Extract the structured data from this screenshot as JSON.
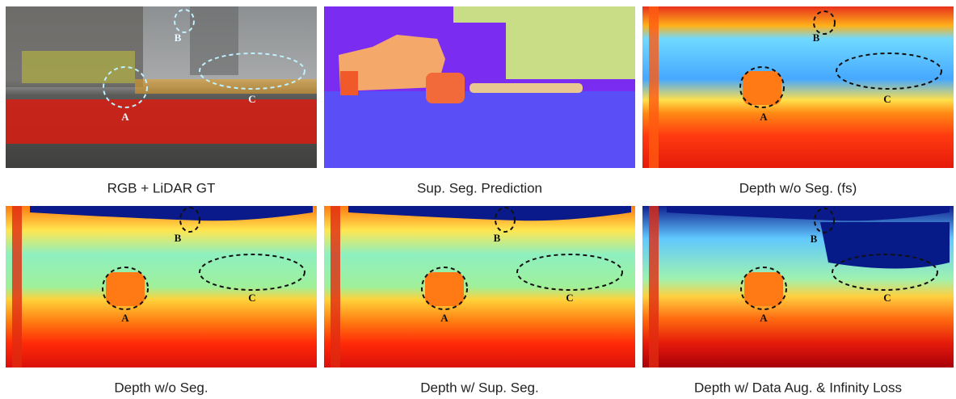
{
  "panels": [
    {
      "caption": "RGB + LiDAR GT",
      "markers": [
        "A",
        "B",
        "C"
      ]
    },
    {
      "caption": "Sup. Seg. Prediction"
    },
    {
      "caption": "Depth w/o Seg. (fs)",
      "markers": [
        "A",
        "B",
        "C"
      ]
    },
    {
      "caption": "Depth w/o Seg.",
      "markers": [
        "A",
        "B",
        "C"
      ]
    },
    {
      "caption": "Depth w/ Sup. Seg.",
      "markers": [
        "A",
        "B",
        "C"
      ]
    },
    {
      "caption": "Depth w/ Data Aug. & Infinity Loss",
      "markers": [
        "A",
        "B",
        "C"
      ]
    }
  ]
}
